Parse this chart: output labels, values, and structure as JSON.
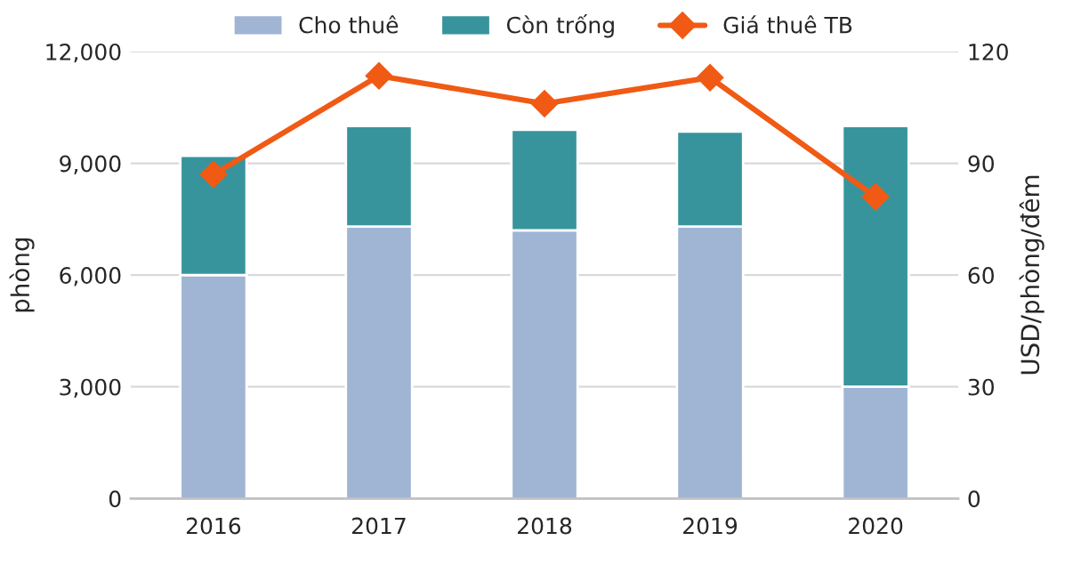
{
  "chart_data": {
    "type": "bar",
    "stacked": true,
    "categories": [
      "2016",
      "2017",
      "2018",
      "2019",
      "2020"
    ],
    "series": [
      {
        "name": "Cho thuê",
        "color": "#a0b4d4",
        "values": [
          6000,
          7300,
          7200,
          7300,
          3000
        ]
      },
      {
        "name": "Còn trống",
        "color": "#38949c",
        "values": [
          3200,
          2700,
          2700,
          2550,
          7000
        ]
      },
      {
        "name": "Giá thuê TB",
        "type": "line",
        "axis": "y2",
        "color": "#f05a14",
        "marker": "diamond",
        "values": [
          87,
          113.5,
          106,
          113,
          81
        ]
      }
    ],
    "ylabel": "phòng",
    "y2label": "USD/phòng/đêm",
    "ylim": [
      0,
      12000
    ],
    "yticks": [
      {
        "value": 0,
        "label": "0"
      },
      {
        "value": 3000,
        "label": "3,000"
      },
      {
        "value": 6000,
        "label": "6,000"
      },
      {
        "value": 9000,
        "label": "9,000"
      },
      {
        "value": 12000,
        "label": "12,000"
      }
    ],
    "y2lim": [
      0,
      120
    ],
    "y2ticks": [
      0,
      30,
      60,
      90,
      120
    ],
    "grid": "y",
    "legend": "top"
  }
}
